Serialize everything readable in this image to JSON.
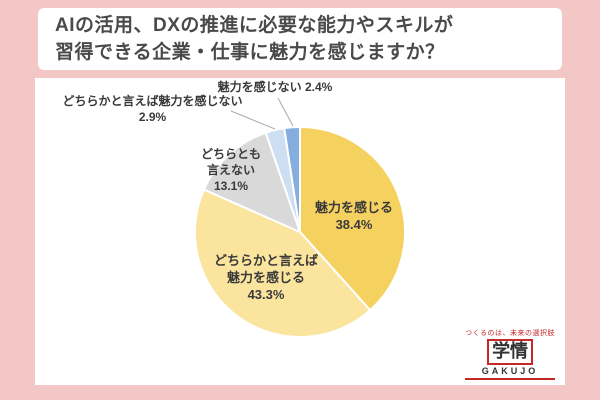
{
  "header": {
    "title_line1": "AIの活用、DXの推進に必要な能力やスキルが",
    "title_line2": "習得できる企業・仕事に魅力を感じますか？"
  },
  "chart_data": {
    "type": "pie",
    "title": "AIの活用、DXの推進に必要な能力やスキルが習得できる企業・仕事に魅力を感じますか？",
    "categories": [
      "魅力を感じる",
      "どちらかと言えば魅力を感じる",
      "どちらとも言えない",
      "どちらかと言えば魅力を感じない",
      "魅力を感じない"
    ],
    "values": [
      38.4,
      43.3,
      13.1,
      2.9,
      2.4
    ],
    "unit": "%",
    "colors": [
      "#f5d160",
      "#fae49e",
      "#d9d9d9",
      "#cdddf2",
      "#84aede"
    ],
    "start_angle": 0,
    "direction": "clockwise",
    "legend_position": "none",
    "labels_on_chart": true
  },
  "labels": {
    "attracted": "魅力を感じる\n38.4%",
    "somewhat_attracted": "どちらかと言えば\n魅力を感じる\n43.3%",
    "neither": "どちらとも\n言えない\n13.1%",
    "somewhat_not_attracted": "どちらかと言えば魅力を感じない\n2.9%",
    "not_attracted": "魅力を感じない 2.4%"
  },
  "logo": {
    "tagline": "つくるのは、未来の選択肢",
    "name": "学情",
    "latin": "GAKUJO"
  }
}
